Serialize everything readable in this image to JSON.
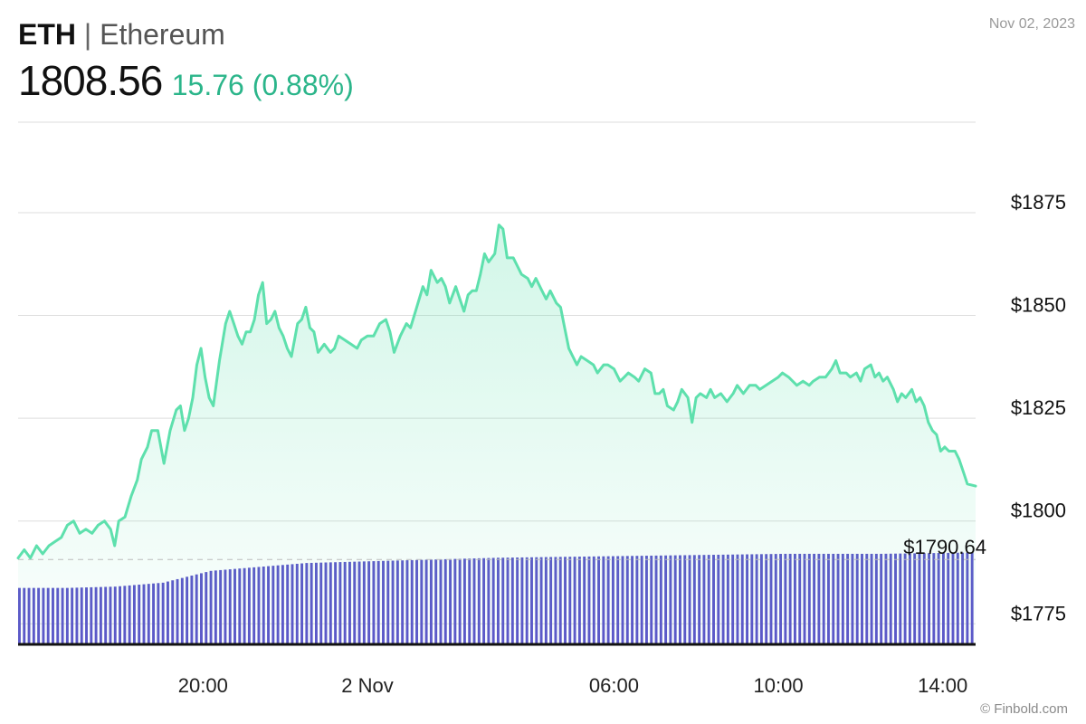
{
  "header": {
    "symbol": "ETH",
    "separator": "|",
    "name": "Ethereum",
    "price": "1808.56",
    "change": "15.76 (0.88%)",
    "date": "Nov 02, 2023"
  },
  "footer": {
    "credit": "© Finbold.com"
  },
  "colors": {
    "line": "#5ee0ad",
    "change": "#2bb58a",
    "volume": "#5b55c9",
    "grid": "#dddddd"
  },
  "chart_data": {
    "type": "line",
    "title": "",
    "xlabel": "",
    "ylabel": "",
    "ylim": [
      1770,
      1897
    ],
    "yticks": [
      {
        "value": 1875,
        "label": "$1875"
      },
      {
        "value": 1850,
        "label": "$1850"
      },
      {
        "value": 1825,
        "label": "$1825"
      },
      {
        "value": 1800,
        "label": "$1800"
      },
      {
        "value": 1775,
        "label": "$1775"
      }
    ],
    "xticks": [
      {
        "hour": 4.5,
        "label": "20:00"
      },
      {
        "hour": 8.5,
        "label": "2 Nov"
      },
      {
        "hour": 14.5,
        "label": "06:00"
      },
      {
        "hour": 18.5,
        "label": "10:00"
      },
      {
        "hour": 22.5,
        "label": "14:00"
      }
    ],
    "xlim_hours": [
      0,
      23.3
    ],
    "reference": {
      "value": 1790.64,
      "label": "$1790.64"
    },
    "series": [
      {
        "points": [
          [
            0.0,
            1791
          ],
          [
            0.15,
            1793
          ],
          [
            0.3,
            1791
          ],
          [
            0.45,
            1794
          ],
          [
            0.6,
            1792
          ],
          [
            0.75,
            1794
          ],
          [
            0.9,
            1795
          ],
          [
            1.05,
            1796
          ],
          [
            1.2,
            1799
          ],
          [
            1.35,
            1800
          ],
          [
            1.5,
            1797
          ],
          [
            1.65,
            1798
          ],
          [
            1.8,
            1797
          ],
          [
            1.95,
            1799
          ],
          [
            2.1,
            1800
          ],
          [
            2.25,
            1798
          ],
          [
            2.35,
            1794
          ],
          [
            2.45,
            1800
          ],
          [
            2.6,
            1801
          ],
          [
            2.75,
            1806
          ],
          [
            2.9,
            1810
          ],
          [
            3.0,
            1815
          ],
          [
            3.15,
            1818
          ],
          [
            3.25,
            1822
          ],
          [
            3.4,
            1822
          ],
          [
            3.55,
            1814
          ],
          [
            3.7,
            1822
          ],
          [
            3.85,
            1827
          ],
          [
            3.95,
            1828
          ],
          [
            4.05,
            1822
          ],
          [
            4.15,
            1825
          ],
          [
            4.25,
            1830
          ],
          [
            4.35,
            1838
          ],
          [
            4.45,
            1842
          ],
          [
            4.55,
            1835
          ],
          [
            4.65,
            1830
          ],
          [
            4.75,
            1828
          ],
          [
            4.9,
            1839
          ],
          [
            5.05,
            1848
          ],
          [
            5.15,
            1851
          ],
          [
            5.25,
            1848
          ],
          [
            5.35,
            1845
          ],
          [
            5.45,
            1843
          ],
          [
            5.55,
            1846
          ],
          [
            5.65,
            1846
          ],
          [
            5.75,
            1849
          ],
          [
            5.85,
            1855
          ],
          [
            5.95,
            1858
          ],
          [
            6.05,
            1848
          ],
          [
            6.15,
            1849
          ],
          [
            6.25,
            1851
          ],
          [
            6.35,
            1847
          ],
          [
            6.45,
            1845
          ],
          [
            6.55,
            1842
          ],
          [
            6.65,
            1840
          ],
          [
            6.8,
            1848
          ],
          [
            6.9,
            1849
          ],
          [
            7.0,
            1852
          ],
          [
            7.1,
            1847
          ],
          [
            7.2,
            1846
          ],
          [
            7.3,
            1841
          ],
          [
            7.45,
            1843
          ],
          [
            7.6,
            1841
          ],
          [
            7.7,
            1842
          ],
          [
            7.8,
            1845
          ],
          [
            7.95,
            1844
          ],
          [
            8.1,
            1843
          ],
          [
            8.25,
            1842
          ],
          [
            8.35,
            1844
          ],
          [
            8.5,
            1845
          ],
          [
            8.65,
            1845
          ],
          [
            8.8,
            1848
          ],
          [
            8.95,
            1849
          ],
          [
            9.05,
            1846
          ],
          [
            9.15,
            1841
          ],
          [
            9.3,
            1845
          ],
          [
            9.45,
            1848
          ],
          [
            9.55,
            1847
          ],
          [
            9.7,
            1852
          ],
          [
            9.85,
            1857
          ],
          [
            9.95,
            1855
          ],
          [
            10.05,
            1861
          ],
          [
            10.2,
            1858
          ],
          [
            10.3,
            1859
          ],
          [
            10.4,
            1857
          ],
          [
            10.5,
            1853
          ],
          [
            10.65,
            1857
          ],
          [
            10.75,
            1854
          ],
          [
            10.85,
            1851
          ],
          [
            10.95,
            1855
          ],
          [
            11.05,
            1856
          ],
          [
            11.15,
            1856
          ],
          [
            11.25,
            1860
          ],
          [
            11.35,
            1865
          ],
          [
            11.45,
            1863
          ],
          [
            11.6,
            1865
          ],
          [
            11.7,
            1872
          ],
          [
            11.8,
            1871
          ],
          [
            11.9,
            1864
          ],
          [
            12.05,
            1864
          ],
          [
            12.15,
            1862
          ],
          [
            12.25,
            1860
          ],
          [
            12.4,
            1859
          ],
          [
            12.5,
            1857
          ],
          [
            12.6,
            1859
          ],
          [
            12.75,
            1856
          ],
          [
            12.85,
            1854
          ],
          [
            12.95,
            1856
          ],
          [
            13.1,
            1853
          ],
          [
            13.2,
            1852
          ],
          [
            13.3,
            1847
          ],
          [
            13.4,
            1842
          ],
          [
            13.5,
            1840
          ],
          [
            13.6,
            1838
          ],
          [
            13.7,
            1840
          ],
          [
            13.85,
            1839
          ],
          [
            14.0,
            1838
          ],
          [
            14.1,
            1836
          ],
          [
            14.25,
            1838
          ],
          [
            14.35,
            1838
          ],
          [
            14.5,
            1837
          ],
          [
            14.65,
            1834
          ],
          [
            14.75,
            1835
          ],
          [
            14.85,
            1836
          ],
          [
            15.0,
            1835
          ],
          [
            15.1,
            1834
          ],
          [
            15.25,
            1837
          ],
          [
            15.4,
            1836
          ],
          [
            15.5,
            1831
          ],
          [
            15.6,
            1831
          ],
          [
            15.7,
            1832
          ],
          [
            15.8,
            1828
          ],
          [
            15.95,
            1827
          ],
          [
            16.05,
            1829
          ],
          [
            16.15,
            1832
          ],
          [
            16.3,
            1830
          ],
          [
            16.4,
            1824
          ],
          [
            16.5,
            1830
          ],
          [
            16.6,
            1831
          ],
          [
            16.75,
            1830
          ],
          [
            16.85,
            1832
          ],
          [
            16.95,
            1830
          ],
          [
            17.1,
            1831
          ],
          [
            17.25,
            1829
          ],
          [
            17.4,
            1831
          ],
          [
            17.5,
            1833
          ],
          [
            17.65,
            1831
          ],
          [
            17.8,
            1833
          ],
          [
            17.95,
            1833
          ],
          [
            18.05,
            1832
          ],
          [
            18.2,
            1833
          ],
          [
            18.35,
            1834
          ],
          [
            18.5,
            1835
          ],
          [
            18.6,
            1836
          ],
          [
            18.75,
            1835
          ],
          [
            18.85,
            1834
          ],
          [
            18.95,
            1833
          ],
          [
            19.1,
            1834
          ],
          [
            19.25,
            1833
          ],
          [
            19.35,
            1834
          ],
          [
            19.5,
            1835
          ],
          [
            19.65,
            1835
          ],
          [
            19.8,
            1837
          ],
          [
            19.9,
            1839
          ],
          [
            20.0,
            1836
          ],
          [
            20.15,
            1836
          ],
          [
            20.25,
            1835
          ],
          [
            20.4,
            1836
          ],
          [
            20.5,
            1834
          ],
          [
            20.6,
            1837
          ],
          [
            20.75,
            1838
          ],
          [
            20.85,
            1835
          ],
          [
            20.95,
            1836
          ],
          [
            21.05,
            1834
          ],
          [
            21.15,
            1835
          ],
          [
            21.3,
            1832
          ],
          [
            21.4,
            1829
          ],
          [
            21.5,
            1831
          ],
          [
            21.6,
            1830
          ],
          [
            21.75,
            1832
          ],
          [
            21.85,
            1829
          ],
          [
            21.95,
            1830
          ],
          [
            22.05,
            1828
          ],
          [
            22.15,
            1824
          ],
          [
            22.25,
            1822
          ],
          [
            22.35,
            1821
          ],
          [
            22.45,
            1817
          ],
          [
            22.55,
            1818
          ],
          [
            22.65,
            1817
          ],
          [
            22.8,
            1817
          ],
          [
            22.9,
            1815
          ],
          [
            23.0,
            1812
          ],
          [
            23.1,
            1809
          ],
          [
            23.3,
            1808.5
          ]
        ]
      }
    ],
    "volume": {
      "bars": 200,
      "levels": [
        [
          0,
          0.43
        ],
        [
          10,
          0.43
        ],
        [
          20,
          0.44
        ],
        [
          30,
          0.47
        ],
        [
          40,
          0.56
        ],
        [
          50,
          0.59
        ],
        [
          60,
          0.62
        ],
        [
          70,
          0.63
        ],
        [
          80,
          0.64
        ],
        [
          100,
          0.66
        ],
        [
          120,
          0.67
        ],
        [
          140,
          0.68
        ],
        [
          160,
          0.69
        ],
        [
          180,
          0.69
        ],
        [
          199,
          0.7
        ]
      ]
    }
  }
}
